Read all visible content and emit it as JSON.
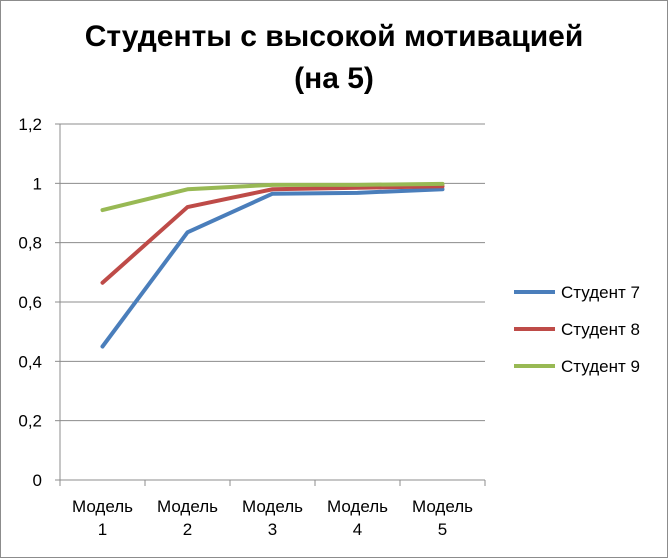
{
  "chart_data": {
    "type": "line",
    "title_lines": [
      "Студенты с высокой мотивацией",
      "(на 5)"
    ],
    "categories": [
      [
        "Модель",
        "1"
      ],
      [
        "Модель",
        "2"
      ],
      [
        "Модель",
        "3"
      ],
      [
        "Модель",
        "4"
      ],
      [
        "Модель",
        "5"
      ]
    ],
    "yticks": [
      "0",
      "0,2",
      "0,4",
      "0,6",
      "0,8",
      "1",
      "1,2"
    ],
    "ylim": [
      0,
      1.2
    ],
    "grid": true,
    "legend_position": "right",
    "series": [
      {
        "name": "Студент 7",
        "color": "#4a7ebb",
        "values": [
          0.45,
          0.835,
          0.965,
          0.968,
          0.98
        ]
      },
      {
        "name": "Студент 8",
        "color": "#be4b48",
        "values": [
          0.665,
          0.92,
          0.98,
          0.985,
          0.99
        ]
      },
      {
        "name": "Студент 9",
        "color": "#98b954",
        "values": [
          0.91,
          0.98,
          0.995,
          0.995,
          0.998
        ]
      }
    ]
  }
}
